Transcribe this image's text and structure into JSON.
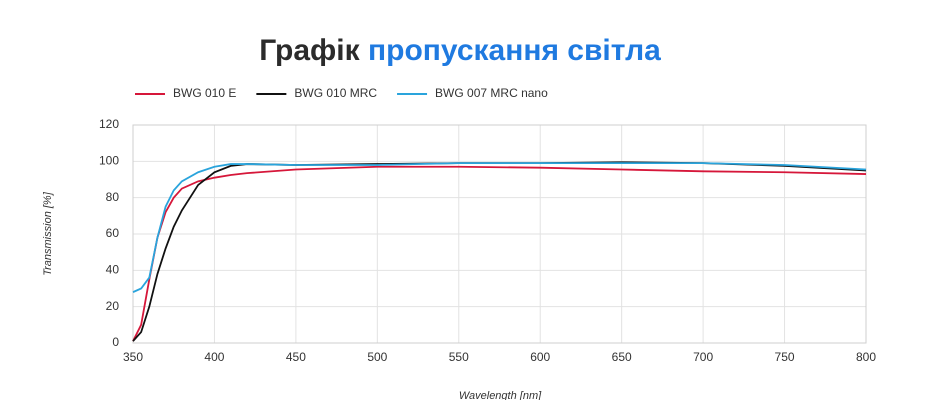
{
  "chart_data": {
    "type": "line",
    "title_parts": [
      "Графік",
      "пропускання світла"
    ],
    "title_colors": [
      "#2b2b2b",
      "#1f7ae0"
    ],
    "x_label": "Wavelength [nm]",
    "y_label": "Transmission [%]",
    "x": [
      350,
      355,
      360,
      365,
      370,
      375,
      380,
      390,
      400,
      410,
      420,
      450,
      500,
      550,
      600,
      650,
      700,
      750,
      800
    ],
    "series": [
      {
        "name": "BWG 010 E",
        "color": "#d6173a",
        "values": [
          1,
          10,
          35,
          58,
          72,
          80,
          85,
          89,
          91,
          92.5,
          93.5,
          95.5,
          97,
          97,
          96.5,
          95.5,
          94.5,
          94,
          93
        ]
      },
      {
        "name": "BWG 010 MRC",
        "color": "#111111",
        "values": [
          1,
          6,
          20,
          38,
          52,
          64,
          73,
          87,
          94,
          97.5,
          98.5,
          98,
          98.5,
          99,
          99,
          99.5,
          99,
          97.5,
          95
        ]
      },
      {
        "name": "BWG 007 MRC nano",
        "color": "#2aa4dc",
        "values": [
          28,
          30,
          36,
          58,
          75,
          84,
          89,
          94,
          97,
          98.5,
          98.5,
          98,
          98,
          99,
          99,
          99,
          99,
          98,
          95.5
        ]
      }
    ],
    "xlim": [
      350,
      800
    ],
    "xticks": [
      350,
      400,
      450,
      500,
      550,
      600,
      650,
      700,
      750,
      800
    ],
    "ylim": [
      0,
      120
    ],
    "yticks": [
      0,
      20,
      40,
      60,
      80,
      100,
      120
    ],
    "grid": true
  }
}
